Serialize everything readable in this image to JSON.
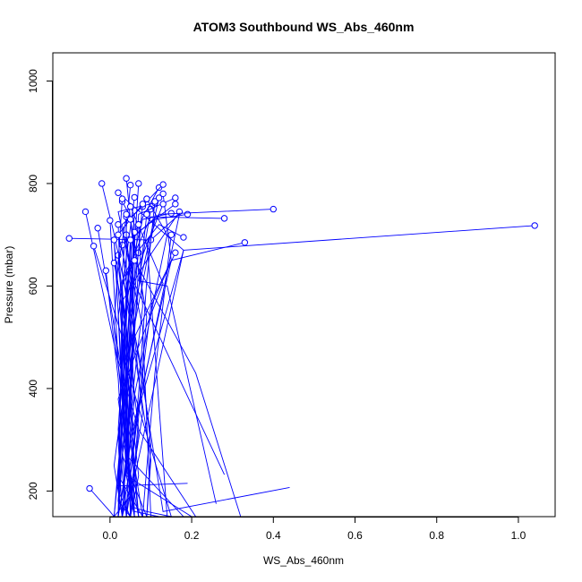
{
  "chart_data": {
    "type": "line",
    "title": "ATOM3 Southbound WS_Abs_460nm",
    "xlabel": "WS_Abs_460nm",
    "ylabel": "Pressure (mbar)",
    "xlim": [
      -0.14,
      1.09
    ],
    "ylim": [
      1055,
      150
    ],
    "y_reversed": true,
    "x_ticks": [
      0.0,
      0.2,
      0.4,
      0.6,
      0.8,
      1.0
    ],
    "x_tick_labels": [
      "0.0",
      "0.2",
      "0.4",
      "0.6",
      "0.8",
      "1.0"
    ],
    "y_ticks": [
      200,
      400,
      600,
      800,
      1000
    ],
    "y_tick_labels": [
      "200",
      "400",
      "600",
      "800",
      "1000"
    ],
    "grid": false,
    "legend": "none",
    "line_color": "#0000ff",
    "marker": "open-circle",
    "series": [
      {
        "x": [
          -0.06,
          0.02,
          0.06,
          0.12
        ],
        "y": [
          745,
          450,
          160,
          150
        ]
      },
      {
        "x": [
          -0.05,
          0.0,
          0.01
        ],
        "y": [
          205,
          160,
          150
        ]
      },
      {
        "x": [
          -0.1,
          0.09,
          0.14
        ],
        "y": [
          693,
          690,
          150
        ]
      },
      {
        "x": [
          -0.04,
          0.03,
          0.05,
          0.09,
          0.15
        ],
        "y": [
          678,
          500,
          170,
          160,
          150
        ]
      },
      {
        "x": [
          -0.03,
          0.05,
          0.04
        ],
        "y": [
          713,
          330,
          150
        ]
      },
      {
        "x": [
          -0.02,
          0.01,
          0.08,
          0.1,
          0.09
        ],
        "y": [
          800,
          702,
          430,
          290,
          150
        ]
      },
      {
        "x": [
          0.0,
          0.02,
          0.07,
          0.21
        ],
        "y": [
          728,
          455,
          320,
          150
        ]
      },
      {
        "x": [
          0.04,
          0.06,
          0.21,
          0.32
        ],
        "y": [
          810,
          650,
          430,
          150
        ]
      },
      {
        "x": [
          0.05,
          0.03,
          0.1,
          0.09
        ],
        "y": [
          797,
          630,
          260,
          150
        ]
      },
      {
        "x": [
          0.06,
          0.02,
          0.04,
          0.2
        ],
        "y": [
          773,
          540,
          230,
          150
        ]
      },
      {
        "x": [
          0.07,
          0.05,
          0.13,
          0.44
        ],
        "y": [
          800,
          560,
          160,
          207
        ]
      },
      {
        "x": [
          0.08,
          0.03,
          0.06,
          0.28
        ],
        "y": [
          755,
          720,
          605,
          232
        ]
      },
      {
        "x": [
          0.09,
          0.01,
          0.04,
          0.18
        ],
        "y": [
          770,
          690,
          270,
          150
        ]
      },
      {
        "x": [
          0.1,
          0.07,
          0.14,
          0.26
        ],
        "y": [
          750,
          610,
          600,
          175
        ]
      },
      {
        "x": [
          0.11,
          0.02,
          0.08,
          0.1
        ],
        "y": [
          762,
          745,
          520,
          150
        ]
      },
      {
        "x": [
          0.12,
          0.05,
          0.02,
          0.19
        ],
        "y": [
          792,
          690,
          210,
          215
        ]
      },
      {
        "x": [
          0.13,
          0.06,
          0.03,
          0.15
        ],
        "y": [
          798,
          740,
          470,
          150
        ]
      },
      {
        "x": [
          0.15,
          0.08,
          0.04,
          0.02
        ],
        "y": [
          742,
          730,
          600,
          150
        ]
      },
      {
        "x": [
          0.16,
          0.06,
          0.05,
          0.01
        ],
        "y": [
          760,
          700,
          480,
          150
        ]
      },
      {
        "x": [
          0.17,
          0.09,
          0.03,
          0.07
        ],
        "y": [
          745,
          650,
          570,
          150
        ]
      },
      {
        "x": [
          0.18,
          0.12,
          0.06,
          0.03,
          0.02
        ],
        "y": [
          695,
          720,
          660,
          600,
          150
        ]
      },
      {
        "x": [
          0.19,
          0.11,
          0.04,
          0.01
        ],
        "y": [
          740,
          730,
          440,
          150
        ]
      },
      {
        "x": [
          0.16,
          0.07,
          0.04,
          0.02
        ],
        "y": [
          772,
          740,
          380,
          150
        ]
      },
      {
        "x": [
          0.28,
          0.1,
          0.03,
          0.05
        ],
        "y": [
          732,
          735,
          610,
          150
        ]
      },
      {
        "x": [
          0.33,
          0.15,
          0.06,
          0.03
        ],
        "y": [
          685,
          650,
          500,
          150
        ]
      },
      {
        "x": [
          0.4,
          0.12,
          0.05,
          0.02,
          0.04
        ],
        "y": [
          750,
          740,
          690,
          320,
          150
        ]
      },
      {
        "x": [
          1.04,
          0.18,
          0.07,
          0.03,
          0.02
        ],
        "y": [
          718,
          670,
          360,
          150,
          150
        ]
      },
      {
        "x": [
          0.02,
          0.18,
          0.05,
          0.01
        ],
        "y": [
          782,
          670,
          190,
          150
        ]
      },
      {
        "x": [
          0.03,
          0.06,
          0.02,
          0.05
        ],
        "y": [
          765,
          720,
          180,
          150
        ]
      },
      {
        "x": [
          0.1,
          0.17,
          0.04,
          0.02
        ],
        "y": [
          690,
          740,
          250,
          150
        ]
      },
      {
        "x": [
          0.13,
          0.15,
          0.05,
          0.07
        ],
        "y": [
          780,
          650,
          300,
          150
        ]
      },
      {
        "x": [
          0.05,
          0.13,
          0.02,
          0.06
        ],
        "y": [
          755,
          605,
          380,
          150
        ]
      },
      {
        "x": [
          0.09,
          0.14,
          0.03,
          0.09
        ],
        "y": [
          770,
          700,
          270,
          150
        ]
      },
      {
        "x": [
          0.01,
          0.03,
          0.03,
          0.05,
          0.03
        ],
        "y": [
          645,
          560,
          420,
          210,
          150
        ]
      },
      {
        "x": [
          0.02,
          0.04,
          0.07,
          0.05
        ],
        "y": [
          660,
          520,
          320,
          150
        ]
      },
      {
        "x": [
          0.03,
          0.05,
          0.06,
          0.04,
          0.06
        ],
        "y": [
          680,
          530,
          380,
          230,
          150
        ]
      },
      {
        "x": [
          0.04,
          0.02,
          0.05,
          0.06
        ],
        "y": [
          735,
          640,
          450,
          150
        ]
      },
      {
        "x": [
          0.02,
          0.03,
          0.02,
          0.05
        ],
        "y": [
          720,
          500,
          200,
          150
        ]
      },
      {
        "x": [
          0.05,
          0.06,
          0.08,
          0.04
        ],
        "y": [
          690,
          500,
          350,
          150
        ]
      },
      {
        "x": [
          0.06,
          0.04,
          0.05
        ],
        "y": [
          705,
          470,
          150
        ]
      },
      {
        "x": [
          0.07,
          0.05,
          0.04,
          0.08
        ],
        "y": [
          665,
          560,
          350,
          150
        ]
      },
      {
        "x": [
          0.04,
          0.06,
          0.03
        ],
        "y": [
          700,
          530,
          150
        ]
      },
      {
        "x": [
          0.03,
          0.01,
          0.06
        ],
        "y": [
          770,
          520,
          150
        ]
      },
      {
        "x": [
          0.08,
          0.06,
          0.02,
          0.03
        ],
        "y": [
          760,
          580,
          300,
          150
        ]
      },
      {
        "x": [
          0.02,
          0.05,
          0.04,
          0.01,
          0.03
        ],
        "y": [
          700,
          600,
          430,
          250,
          150
        ]
      },
      {
        "x": [
          0.01,
          0.04,
          0.02,
          0.08
        ],
        "y": [
          690,
          410,
          230,
          150
        ]
      },
      {
        "x": [
          0.06,
          0.03,
          0.07,
          0.05
        ],
        "y": [
          650,
          520,
          230,
          150
        ]
      },
      {
        "x": [
          -0.01,
          0.02,
          0.04
        ],
        "y": [
          630,
          420,
          150
        ]
      },
      {
        "x": [
          0.04,
          0.04,
          0.06
        ],
        "y": [
          740,
          250,
          150
        ]
      },
      {
        "x": [
          0.11,
          0.09,
          0.07,
          0.04
        ],
        "y": [
          765,
          610,
          390,
          150
        ]
      },
      {
        "x": [
          0.12,
          0.06,
          0.03
        ],
        "y": [
          772,
          560,
          150
        ]
      },
      {
        "x": [
          0.16,
          0.1,
          0.05,
          0.06
        ],
        "y": [
          665,
          560,
          230,
          150
        ]
      },
      {
        "x": [
          0.09,
          0.05,
          0.02,
          0.05
        ],
        "y": [
          740,
          450,
          180,
          150
        ]
      },
      {
        "x": [
          0.07,
          0.08,
          0.04,
          0.07
        ],
        "y": [
          720,
          560,
          280,
          150
        ]
      },
      {
        "x": [
          0.15,
          0.11,
          0.08
        ],
        "y": [
          700,
          430,
          150
        ]
      },
      {
        "x": [
          0.13,
          0.07,
          0.04,
          0.02
        ],
        "y": [
          760,
          640,
          240,
          150
        ]
      },
      {
        "x": [
          0.05,
          0.09,
          0.05
        ],
        "y": [
          730,
          540,
          150
        ]
      }
    ]
  }
}
